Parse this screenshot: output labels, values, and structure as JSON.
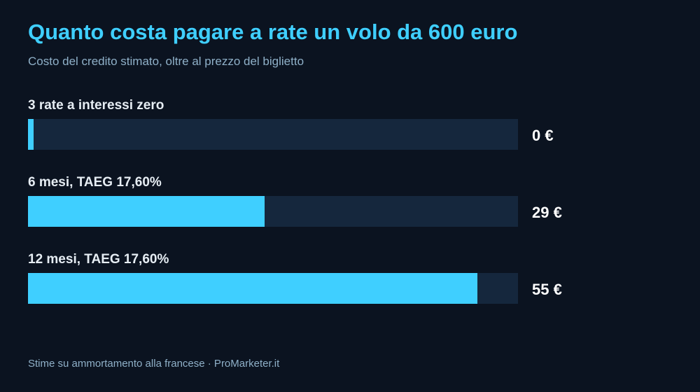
{
  "title": "Quanto costa pagare a rate un volo da 600 euro",
  "subtitle": "Costo del credito stimato, oltre al prezzo del biglietto",
  "footer": "Stime su ammortamento alla francese · ProMarketer.it",
  "colors": {
    "background": "#0b1320",
    "accent": "#3fcfff",
    "track": "#15273d"
  },
  "chart_data": {
    "type": "bar",
    "orientation": "horizontal",
    "categories": [
      "3 rate a interessi zero",
      "6 mesi, TAEG 17,60%",
      "12 mesi, TAEG 17,60%"
    ],
    "values": [
      0,
      29,
      55
    ],
    "value_labels": [
      "0 €",
      "29 €",
      "55 €"
    ],
    "unit": "€",
    "xlim": [
      0,
      60
    ],
    "grid": false,
    "title": "Quanto costa pagare a rate un volo da 600 euro",
    "subtitle": "Costo del credito stimato, oltre al prezzo del biglietto"
  }
}
